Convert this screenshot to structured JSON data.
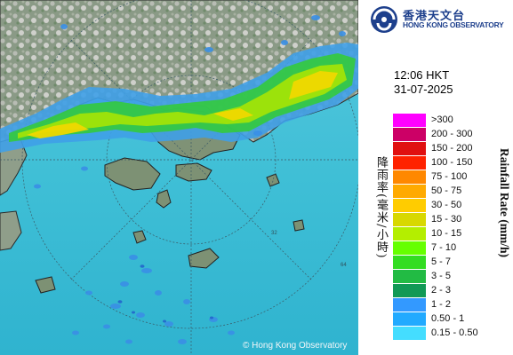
{
  "header": {
    "logo_zh": "香港天文台",
    "logo_en": "HONG KONG OBSERVATORY",
    "time": "12:06 HKT",
    "date": "31-07-2025"
  },
  "map": {
    "credit": "© Hong Kong Observatory",
    "range_ring_labels": [
      "32",
      "64"
    ]
  },
  "legend": {
    "title_zh": "降雨率(毫米/小時)",
    "title_en": "Rainfall Rate (mm/h)",
    "items": [
      {
        "label": ">300",
        "color": "#ff00ff"
      },
      {
        "label": "200 - 300",
        "color": "#cc0066"
      },
      {
        "label": "150 - 200",
        "color": "#e01010"
      },
      {
        "label": "100 - 150",
        "color": "#ff2200"
      },
      {
        "label": "75 - 100",
        "color": "#ff8800"
      },
      {
        "label": "50 - 75",
        "color": "#ffaa00"
      },
      {
        "label": "30 - 50",
        "color": "#ffcc00"
      },
      {
        "label": "15 - 30",
        "color": "#d8d800"
      },
      {
        "label": "10 - 15",
        "color": "#b4ee00"
      },
      {
        "label": "7 - 10",
        "color": "#66ff00"
      },
      {
        "label": "5 - 7",
        "color": "#33dd22"
      },
      {
        "label": "3 - 5",
        "color": "#22bb44"
      },
      {
        "label": "2 - 3",
        "color": "#119955"
      },
      {
        "label": "1 - 2",
        "color": "#3399ff"
      },
      {
        "label": "0.50 - 1",
        "color": "#22aaff"
      },
      {
        "label": "0.15 - 0.50",
        "color": "#44ddff"
      }
    ]
  }
}
